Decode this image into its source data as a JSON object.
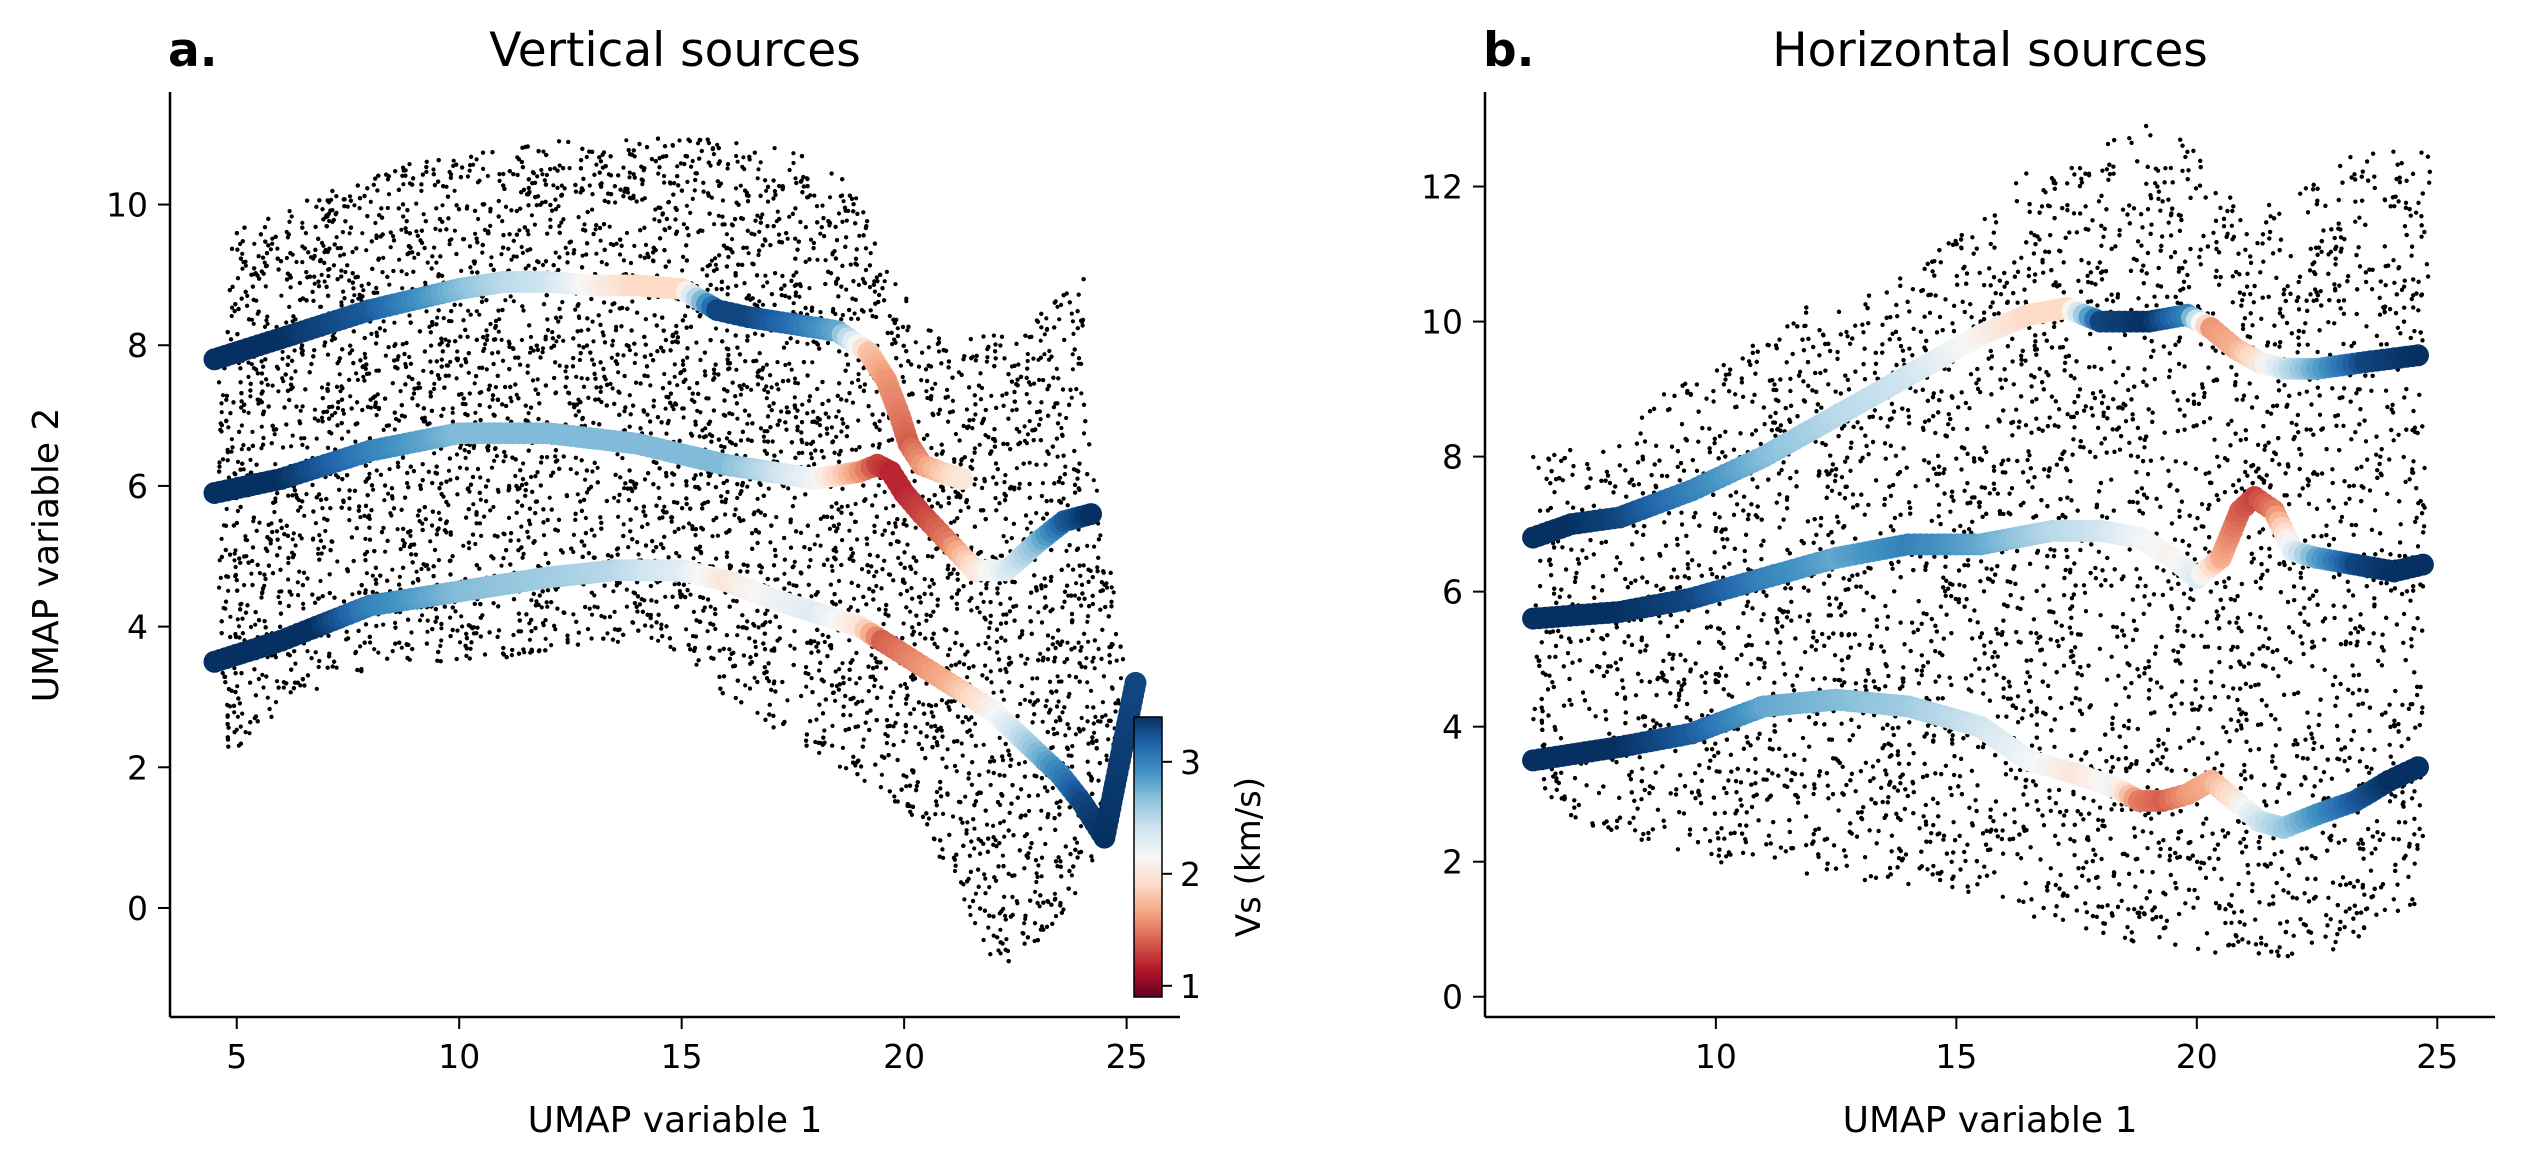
{
  "panels": [
    {
      "letter": "a.",
      "title": "Vertical sources",
      "xlabel": "UMAP variable 1",
      "ylabel": "UMAP variable 2"
    },
    {
      "letter": "b.",
      "title": "Horizontal sources",
      "xlabel": "UMAP variable 1",
      "ylabel": ""
    }
  ],
  "colorbar": {
    "label": "Vs (km/s)",
    "range": [
      0.9,
      3.4
    ],
    "ticks": [
      "1",
      "2",
      "3"
    ],
    "colormap": "RdBu (red = low Vs, blue = high Vs)"
  },
  "colors": {
    "background_points": "#000000",
    "low_vs": "#67001f",
    "mid_vs": "#f7f7f7",
    "high_vs": "#053061"
  },
  "chart_data": [
    {
      "type": "scatter",
      "title": "Vertical sources",
      "panel_letter": "a.",
      "xlabel": "UMAP variable 1",
      "ylabel": "UMAP variable 2",
      "xlim": [
        3.5,
        26.2
      ],
      "ylim": [
        -1.55,
        11.6
      ],
      "xticks": [
        5,
        10,
        15,
        20,
        25
      ],
      "yticks": [
        0,
        2,
        4,
        6,
        8,
        10
      ],
      "grid": false,
      "background_cloud_outline": [
        [
          4.8,
          2.2
        ],
        [
          5.5,
          2.5
        ],
        [
          7,
          3.2
        ],
        [
          8.5,
          3.5
        ],
        [
          10.5,
          3.5
        ],
        [
          12.5,
          3.7
        ],
        [
          14,
          3.8
        ],
        [
          15,
          3.6
        ],
        [
          16.3,
          2.8
        ],
        [
          17.8,
          2.3
        ],
        [
          19.3,
          1.7
        ],
        [
          20.5,
          1
        ],
        [
          21.3,
          0.2
        ],
        [
          21.8,
          -0.6
        ],
        [
          22.1,
          -0.95
        ],
        [
          22.8,
          -0.6
        ],
        [
          23.8,
          0.1
        ],
        [
          24.5,
          1
        ],
        [
          25.1,
          3
        ],
        [
          24.6,
          5
        ],
        [
          24.2,
          6.5
        ],
        [
          24,
          7.8
        ],
        [
          24.05,
          9.1
        ],
        [
          23.5,
          8.7
        ],
        [
          22.8,
          8.3
        ],
        [
          22,
          8.2
        ],
        [
          21,
          8
        ],
        [
          20.5,
          8.3
        ],
        [
          19.7,
          9
        ],
        [
          18.8,
          10.3
        ],
        [
          18,
          10.7
        ],
        [
          16.5,
          10.9
        ],
        [
          15,
          10.95
        ],
        [
          12,
          10.9
        ],
        [
          9,
          10.6
        ],
        [
          7,
          10.2
        ],
        [
          5.5,
          9.8
        ],
        [
          4.9,
          9.6
        ],
        [
          4.6,
          8
        ],
        [
          4.6,
          6
        ],
        [
          4.6,
          4
        ],
        [
          4.8,
          2.2
        ]
      ],
      "profiles": [
        {
          "x": [
            4.5,
            6,
            8,
            10,
            11,
            12,
            13,
            14,
            15,
            15.8,
            16.5,
            17.5,
            18.5,
            19.2,
            19.6,
            19.9,
            20.1,
            20.4,
            20.8,
            21.3
          ],
          "y": [
            7.8,
            8.1,
            8.5,
            8.8,
            8.9,
            8.9,
            8.85,
            8.85,
            8.8,
            8.5,
            8.4,
            8.3,
            8.2,
            7.9,
            7.5,
            7.0,
            6.6,
            6.3,
            6.2,
            6.1
          ],
          "vs": [
            3.4,
            3.4,
            3.2,
            2.7,
            2.5,
            2.4,
            2.1,
            1.9,
            1.9,
            3.3,
            3.3,
            3.1,
            2.8,
            1.8,
            1.6,
            1.5,
            1.4,
            1.6,
            1.8,
            2.0
          ]
        },
        {
          "x": [
            4.5,
            6,
            8,
            10,
            12,
            14,
            16,
            18,
            19,
            19.4,
            19.7,
            20,
            20.4,
            21,
            21.6,
            22.3,
            23,
            23.6,
            24.2
          ],
          "y": [
            5.9,
            6.1,
            6.5,
            6.75,
            6.75,
            6.6,
            6.3,
            6.1,
            6.2,
            6.3,
            6.2,
            5.9,
            5.6,
            5.2,
            4.8,
            4.8,
            5.2,
            5.5,
            5.6
          ],
          "vs": [
            3.4,
            3.4,
            3.0,
            2.7,
            2.7,
            2.7,
            2.7,
            2.2,
            1.6,
            1.3,
            1.2,
            1.2,
            1.3,
            1.5,
            2.0,
            2.3,
            2.7,
            3.2,
            3.4
          ]
        },
        {
          "x": [
            4.5,
            6,
            6.8,
            8,
            10,
            12,
            13.5,
            15,
            16,
            17,
            18,
            19,
            19.5,
            20,
            20.5,
            21,
            21.5,
            22,
            22.5,
            23,
            23.5,
            24,
            24.5,
            25.2
          ],
          "y": [
            3.5,
            3.8,
            4.0,
            4.3,
            4.5,
            4.7,
            4.8,
            4.8,
            4.65,
            4.4,
            4.2,
            4.0,
            3.8,
            3.6,
            3.4,
            3.2,
            3.0,
            2.8,
            2.5,
            2.2,
            1.9,
            1.5,
            1.0,
            3.2
          ],
          "vs": [
            3.4,
            3.4,
            3.4,
            3.0,
            2.7,
            2.6,
            2.5,
            2.3,
            2.0,
            2.2,
            2.3,
            2.0,
            1.4,
            1.5,
            1.6,
            1.7,
            1.9,
            2.1,
            2.4,
            2.7,
            3.0,
            3.3,
            3.4,
            3.3
          ]
        }
      ]
    },
    {
      "type": "scatter",
      "title": "Horizontal sources",
      "panel_letter": "b.",
      "xlabel": "UMAP variable 1",
      "ylabel": "",
      "xlim": [
        5.2,
        26.2
      ],
      "ylim": [
        -0.3,
        13.4
      ],
      "xticks": [
        10,
        15,
        20,
        25
      ],
      "yticks": [
        0,
        2,
        4,
        6,
        8,
        10,
        12
      ],
      "grid": false,
      "background_cloud_outline": [
        [
          6.2,
          3.2
        ],
        [
          7,
          2.6
        ],
        [
          8.5,
          2.3
        ],
        [
          10,
          2
        ],
        [
          11,
          1.8
        ],
        [
          13,
          1.7
        ],
        [
          15,
          1.6
        ],
        [
          16.5,
          1.2
        ],
        [
          18,
          0.9
        ],
        [
          19.5,
          0.7
        ],
        [
          21,
          0.6
        ],
        [
          22.5,
          0.6
        ],
        [
          23.5,
          0.9
        ],
        [
          24.7,
          1.4
        ],
        [
          24.7,
          5
        ],
        [
          24.8,
          9
        ],
        [
          24.9,
          12.5
        ],
        [
          24,
          12.6
        ],
        [
          23,
          12.4
        ],
        [
          22,
          12
        ],
        [
          21.2,
          11.6
        ],
        [
          20.5,
          12
        ],
        [
          19.9,
          12.6
        ],
        [
          19.5,
          12.9
        ],
        [
          18.5,
          12.9
        ],
        [
          17.5,
          12.7
        ],
        [
          16.5,
          12.3
        ],
        [
          15.5,
          11.5
        ],
        [
          14.5,
          11
        ],
        [
          13.5,
          10.5
        ],
        [
          12,
          10.3
        ],
        [
          10.5,
          9.5
        ],
        [
          9,
          9
        ],
        [
          7.5,
          8.3
        ],
        [
          6.2,
          8
        ],
        [
          6.2,
          5.5
        ],
        [
          6.2,
          3.2
        ]
      ],
      "profiles": [
        {
          "x": [
            6.2,
            7,
            8,
            9.5,
            11,
            12.5,
            14,
            15.5,
            16.5,
            17.3,
            18,
            19,
            19.8,
            20.3,
            20.8,
            21.3,
            21.8,
            22.5,
            23.5,
            24.6
          ],
          "y": [
            6.8,
            7.0,
            7.1,
            7.5,
            8.0,
            8.6,
            9.2,
            9.8,
            10.1,
            10.2,
            10.0,
            10.0,
            10.1,
            9.9,
            9.6,
            9.4,
            9.3,
            9.3,
            9.4,
            9.5
          ],
          "vs": [
            3.4,
            3.4,
            3.3,
            3.0,
            2.7,
            2.5,
            2.4,
            2.1,
            1.9,
            1.9,
            3.3,
            3.4,
            3.0,
            1.6,
            1.7,
            2.0,
            2.4,
            2.8,
            3.3,
            3.4
          ]
        },
        {
          "x": [
            6.2,
            8,
            9.5,
            11,
            12.5,
            14,
            15.5,
            17,
            18,
            18.8,
            19.5,
            20,
            20.5,
            20.9,
            21.2,
            21.6,
            22,
            22.5,
            23.3,
            24.1,
            24.7
          ],
          "y": [
            5.6,
            5.7,
            5.9,
            6.2,
            6.5,
            6.7,
            6.7,
            6.9,
            6.9,
            6.8,
            6.5,
            6.2,
            6.5,
            7.2,
            7.4,
            7.2,
            6.6,
            6.5,
            6.4,
            6.3,
            6.4
          ],
          "vs": [
            3.4,
            3.4,
            3.3,
            3.0,
            2.8,
            3.0,
            2.8,
            2.5,
            2.4,
            2.2,
            2.1,
            2.3,
            1.7,
            1.4,
            1.3,
            1.5,
            2.3,
            2.8,
            3.3,
            3.4,
            3.4
          ]
        },
        {
          "x": [
            6.2,
            8,
            9.5,
            11,
            12.5,
            14,
            15.5,
            16.5,
            17.5,
            18.3,
            18.8,
            19.3,
            19.8,
            20.3,
            20.8,
            21.3,
            21.8,
            22.5,
            23.3,
            24,
            24.6
          ],
          "y": [
            3.5,
            3.7,
            3.9,
            4.3,
            4.4,
            4.3,
            4.0,
            3.5,
            3.3,
            3.1,
            2.9,
            2.9,
            3.0,
            3.2,
            2.9,
            2.6,
            2.5,
            2.7,
            2.9,
            3.2,
            3.4
          ],
          "vs": [
            3.4,
            3.4,
            3.2,
            2.8,
            2.7,
            2.6,
            2.4,
            2.2,
            2.0,
            2.2,
            1.5,
            1.4,
            1.6,
            1.7,
            2.0,
            2.4,
            2.6,
            2.9,
            3.2,
            3.4,
            3.4
          ]
        }
      ]
    }
  ]
}
